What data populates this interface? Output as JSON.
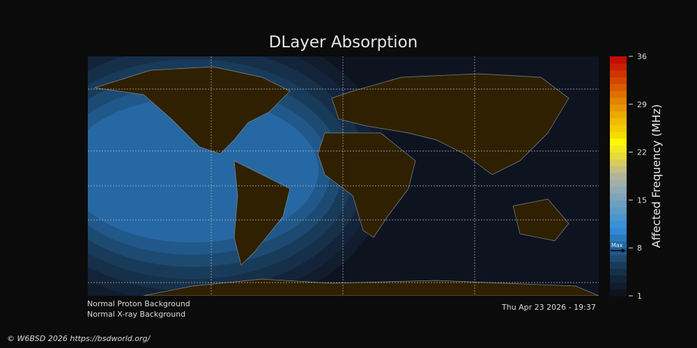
{
  "title": "DLayer Absorption",
  "chart_data": {
    "type": "heatmap",
    "title": "DLayer Absorption",
    "colorbar": {
      "label": "Affected Frequency (MHz)",
      "range": [
        1,
        36
      ],
      "ticks": [
        36,
        29,
        22,
        15,
        8,
        1
      ],
      "max_marker_label": "Max",
      "max_value": 7.6,
      "colors": [
        "#0d1420",
        "#111d2c",
        "#13243a",
        "#163049",
        "#193b5a",
        "#1d4a71",
        "#21588a",
        "#2668a3",
        "#2b79bd",
        "#3288d2",
        "#3c91d6",
        "#4b96cd",
        "#5c9bc6",
        "#6da0bf",
        "#7fa5b8",
        "#91aab2",
        "#a2aeac",
        "#b0b49c",
        "#c3c080",
        "#d6cd5a",
        "#e6db3a",
        "#f2ea22",
        "#fcfb00",
        "#f5dc00",
        "#f2cc00",
        "#eebc00",
        "#eaaa00",
        "#e69700",
        "#e18400",
        "#dc7000",
        "#d85c00",
        "#d44700",
        "#cf3300",
        "#c91f00",
        "#c30d00"
      ]
    },
    "absorption_peak": {
      "lon": -100,
      "lat": 20,
      "value": 7.6
    },
    "gridlines": true
  },
  "status": {
    "proton": "Normal Proton Background",
    "xray": "Normal X-ray Background",
    "datetime": "Thu Apr 23 2026 - 19:37"
  },
  "copyright": "© W6BSD 2026 https://bsdworld.org/",
  "colors": {
    "background": "#0b0b0b",
    "ocean": "#0d1420",
    "land": "#2e2000",
    "coast": "#888888"
  }
}
